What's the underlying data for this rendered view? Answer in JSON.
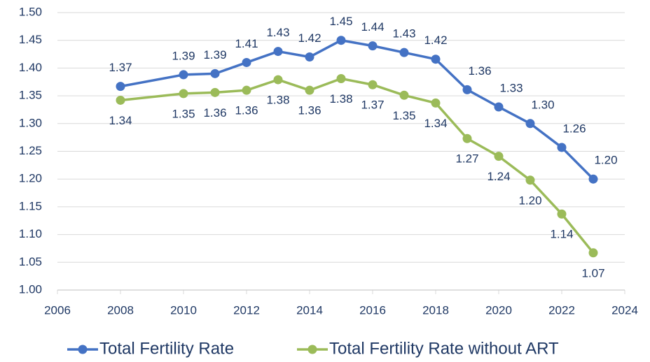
{
  "chart_data": {
    "type": "line",
    "x": [
      2008,
      2010,
      2011,
      2012,
      2013,
      2014,
      2015,
      2016,
      2017,
      2018,
      2019,
      2020,
      2021,
      2022,
      2023
    ],
    "series": [
      {
        "name": "Total Fertility Rate",
        "color": "#4472c4",
        "values": [
          1.367,
          1.388,
          1.39,
          1.41,
          1.43,
          1.42,
          1.45,
          1.44,
          1.428,
          1.416,
          1.361,
          1.33,
          1.3,
          1.257,
          1.2
        ],
        "value_labels": [
          "1.37",
          "1.39",
          "1.39",
          "1.41",
          "1.43",
          "1.42",
          "1.45",
          "1.44",
          "1.43",
          "1.42",
          "1.36",
          "1.33",
          "1.30",
          "1.26",
          "1.20"
        ]
      },
      {
        "name": "Total Fertility Rate without ART",
        "color": "#9bbb59",
        "values": [
          1.342,
          1.354,
          1.356,
          1.36,
          1.379,
          1.36,
          1.381,
          1.37,
          1.351,
          1.337,
          1.273,
          1.241,
          1.198,
          1.137,
          1.067
        ],
        "value_labels": [
          "1.34",
          "1.35",
          "1.36",
          "1.36",
          "1.38",
          "1.36",
          "1.38",
          "1.37",
          "1.35",
          "1.34",
          "1.27",
          "1.24",
          "1.20",
          "1.14",
          "1.07"
        ]
      }
    ],
    "xlim": [
      2006,
      2024
    ],
    "xticks": [
      2006,
      2008,
      2010,
      2012,
      2014,
      2016,
      2018,
      2020,
      2022,
      2024
    ],
    "ylim": [
      1.0,
      1.5
    ],
    "yticks": [
      {
        "value": 1.0,
        "label": "1.00"
      },
      {
        "value": 1.05,
        "label": "1.05"
      },
      {
        "value": 1.1,
        "label": "1.10"
      },
      {
        "value": 1.15,
        "label": "1.15"
      },
      {
        "value": 1.2,
        "label": "1.20"
      },
      {
        "value": 1.25,
        "label": "1.25"
      },
      {
        "value": 1.3,
        "label": "1.30"
      },
      {
        "value": 1.35,
        "label": "1.35"
      },
      {
        "value": 1.4,
        "label": "1.40"
      },
      {
        "value": 1.45,
        "label": "1.45"
      },
      {
        "value": 1.5,
        "label": "1.50"
      }
    ],
    "grid": true,
    "legend": "bottom"
  }
}
